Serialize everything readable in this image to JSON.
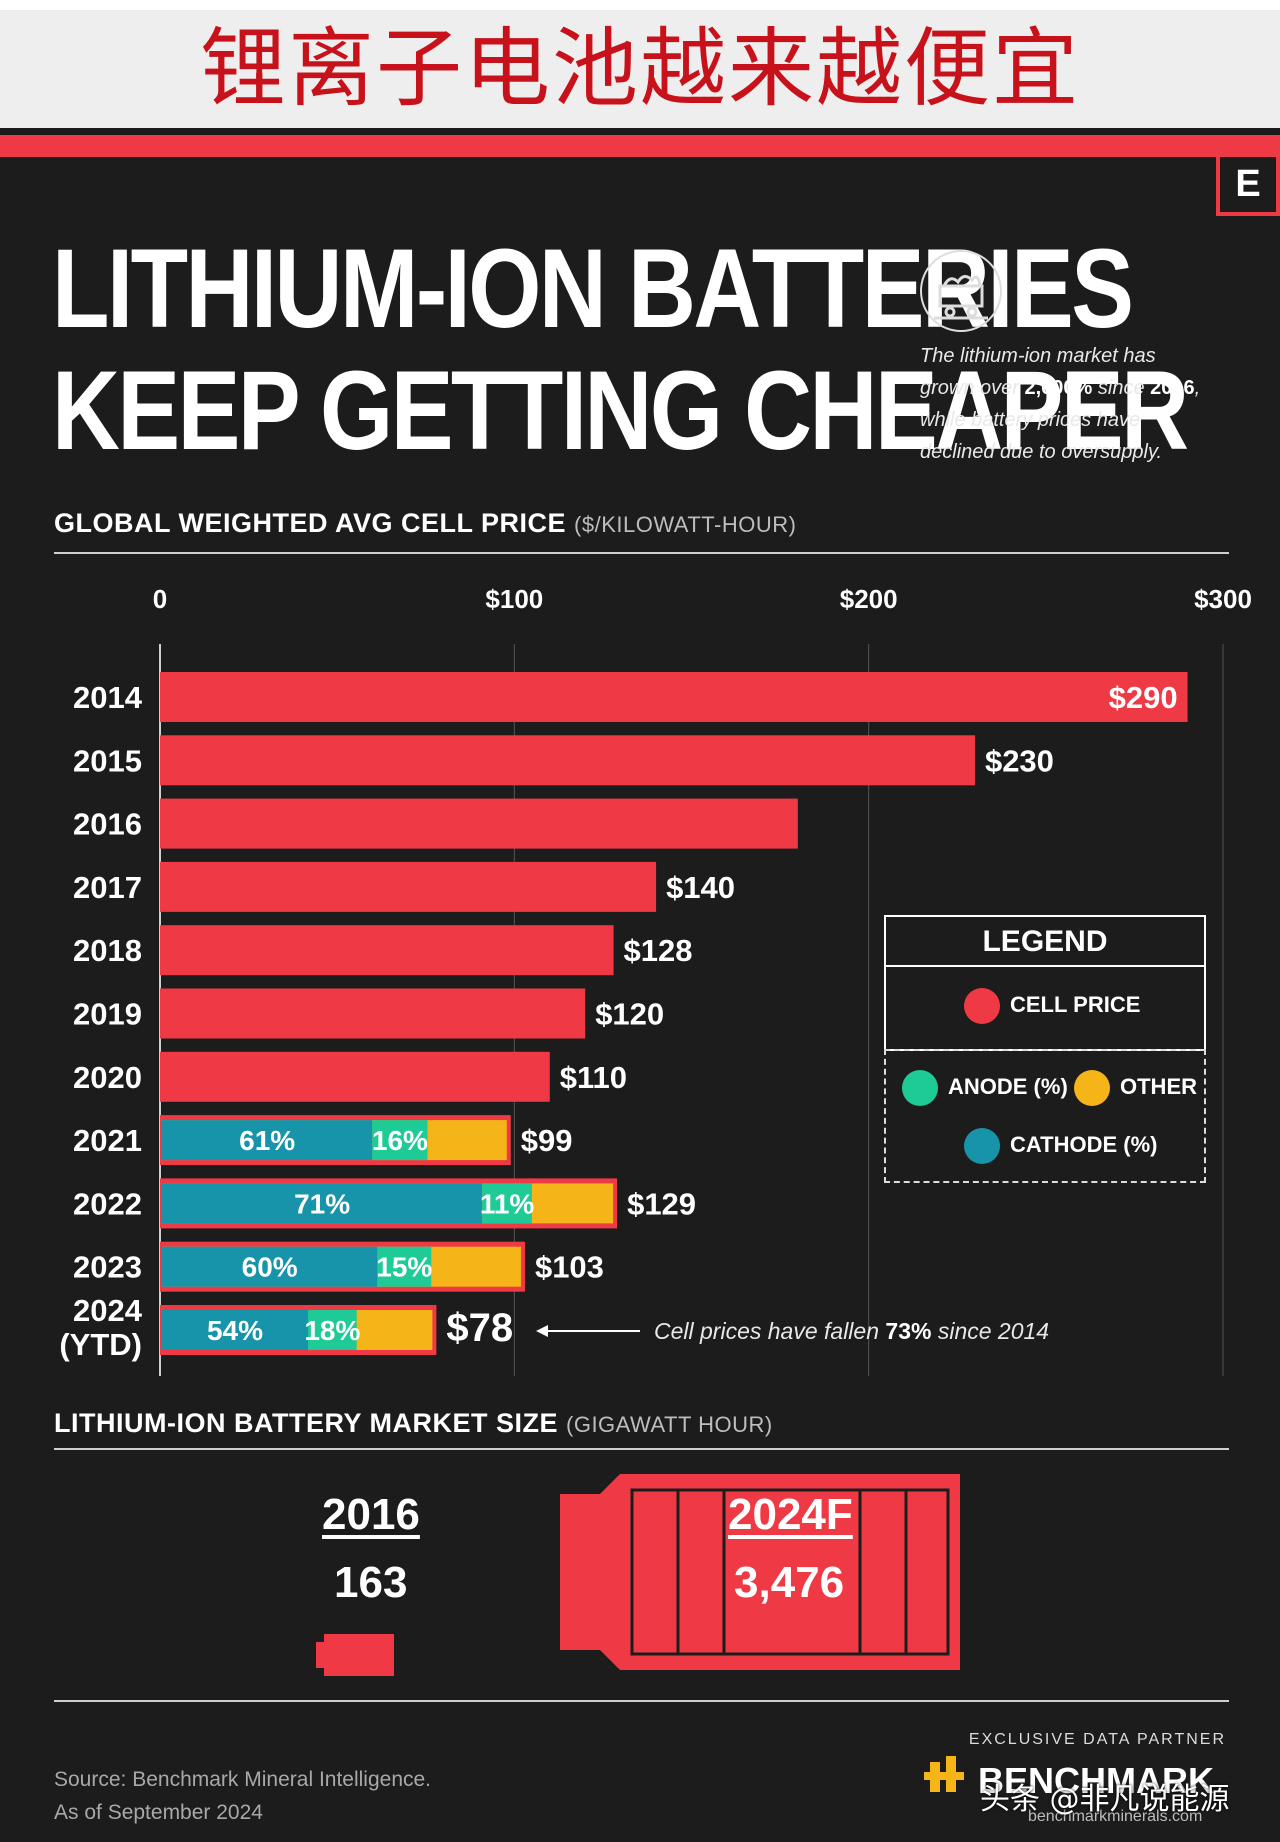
{
  "banner": {
    "text": "锂离子电池越来越便宜"
  },
  "logo": {
    "letter": "E"
  },
  "header": {
    "title_line1": "LITHIUM-ION BATTERIES",
    "title_line2": "KEEP GETTING CHEAPER",
    "subtitle_1": "The lithium-ion market has",
    "subtitle_2a": "grown over ",
    "subtitle_2b": "2,000%",
    "subtitle_2c": " since ",
    "subtitle_2d": "2016",
    "subtitle_2e": ",",
    "subtitle_3": "while battery prices have",
    "subtitle_4": "declined due to oversupply."
  },
  "price_section": {
    "heading": "GLOBAL WEIGHTED AVG CELL PRICE",
    "unit": "($/KILOWATT-HOUR)"
  },
  "chart_data": {
    "type": "bar",
    "orientation": "horizontal",
    "title": "GLOBAL WEIGHTED AVG CELL PRICE ($/KILOWATT-HOUR)",
    "xlim": [
      0,
      300
    ],
    "x_ticks": [
      0,
      100,
      200,
      300
    ],
    "x_tick_labels": [
      "0",
      "$100",
      "$200",
      "$300"
    ],
    "categories": [
      "2014",
      "2015",
      "2016",
      "2017",
      "2018",
      "2019",
      "2020",
      "2021",
      "2022",
      "2023",
      "2024 (YTD)"
    ],
    "category_lines": [
      [
        "2014"
      ],
      [
        "2015"
      ],
      [
        "2016"
      ],
      [
        "2017"
      ],
      [
        "2018"
      ],
      [
        "2019"
      ],
      [
        "2020"
      ],
      [
        "2021"
      ],
      [
        "2022"
      ],
      [
        "2023"
      ],
      [
        "2024",
        "(YTD)"
      ]
    ],
    "series": [
      {
        "name": "CELL PRICE",
        "values": [
          290,
          230,
          180,
          140,
          128,
          120,
          110,
          99,
          129,
          103,
          78
        ]
      }
    ],
    "data_labels": [
      "$290",
      "$230",
      "",
      "$140",
      "$128",
      "$120",
      "$110",
      "$99",
      "$129",
      "$103",
      "$78"
    ],
    "composition": [
      {
        "year": "2021",
        "cathode_pct": 61,
        "anode_pct": 16,
        "cathode_label": "61%",
        "anode_label": "16%"
      },
      {
        "year": "2022",
        "cathode_pct": 71,
        "anode_pct": 11,
        "cathode_label": "71%",
        "anode_label": "11%"
      },
      {
        "year": "2023",
        "cathode_pct": 60,
        "anode_pct": 15,
        "cathode_label": "60%",
        "anode_label": "15%"
      },
      {
        "year": "2024 (YTD)",
        "cathode_pct": 54,
        "anode_pct": 18,
        "cathode_label": "54%",
        "anode_label": "18%"
      }
    ],
    "annotation": {
      "pre": "Cell prices have fallen ",
      "bold": "73%",
      "post": " since 2014"
    },
    "colors": {
      "cell_price": "#ef3a45",
      "cathode": "#1793aa",
      "anode": "#1ecb96",
      "other": "#f5b417"
    }
  },
  "legend": {
    "title": "LEGEND",
    "cell_price": "CELL PRICE",
    "anode": "ANODE (%)",
    "other": "OTHER",
    "cathode": "CATHODE (%)"
  },
  "market_section": {
    "heading": "LITHIUM-ION BATTERY MARKET SIZE",
    "unit": "(GIGAWATT HOUR)",
    "y2016": "2016",
    "v2016": "163",
    "y2024": "2024F",
    "v2024": "3,476"
  },
  "footer": {
    "source_1": "Source: Benchmark Mineral Intelligence.",
    "source_2": "As of September 2024",
    "partner_label": "EXCLUSIVE DATA PARTNER",
    "brand": "BENCHMARK",
    "brand_url": "benchmarkminerals.com",
    "watermark": "头条 @非凡说能源"
  }
}
